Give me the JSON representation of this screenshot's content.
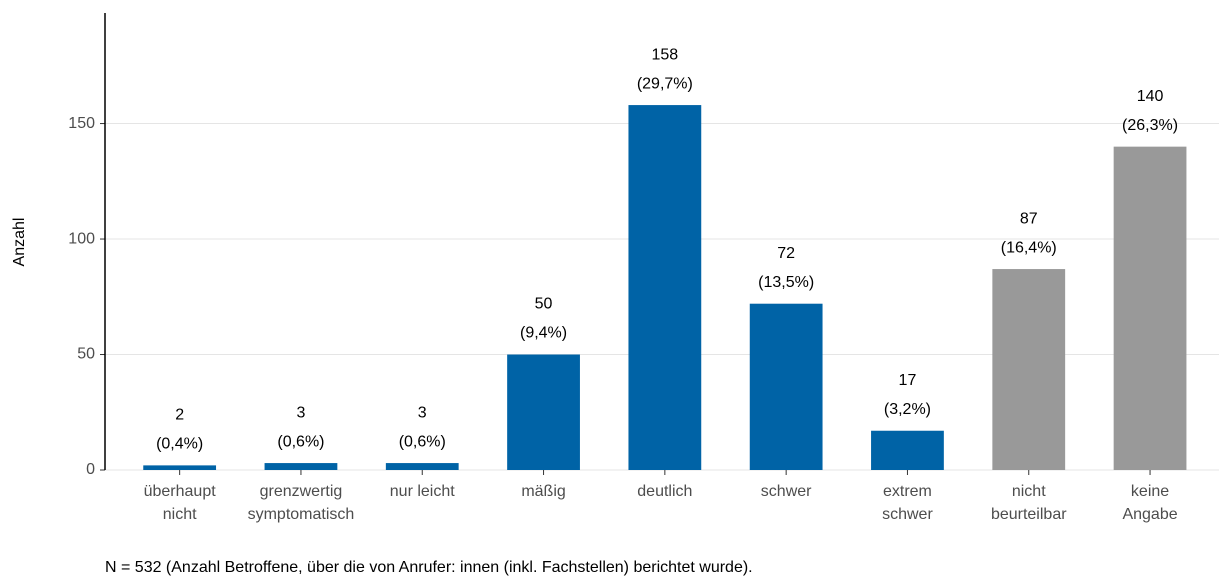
{
  "chart_data": {
    "type": "bar",
    "y_label": "Anzahl",
    "categories": [
      [
        "überhaupt",
        "nicht"
      ],
      [
        "grenzwertig",
        "symptomatisch"
      ],
      [
        "nur leicht"
      ],
      [
        "mäßig"
      ],
      [
        "deutlich"
      ],
      [
        "schwer"
      ],
      [
        "extrem",
        "schwer"
      ],
      [
        "nicht",
        "beurteilbar"
      ],
      [
        "keine",
        "Angabe"
      ]
    ],
    "values": [
      2,
      3,
      3,
      50,
      158,
      72,
      17,
      87,
      140
    ],
    "share_labels": [
      "(0,4%)",
      "(0,6%)",
      "(0,6%)",
      "(9,4%)",
      "(29,7%)",
      "(13,5%)",
      "(3,2%)",
      "(16,4%)",
      "(26,3%)"
    ],
    "colors": [
      "#0063a6",
      "#0063a6",
      "#0063a6",
      "#0063a6",
      "#0063a6",
      "#0063a6",
      "#0063a6",
      "#999999",
      "#999999"
    ],
    "ylim": [
      0,
      197
    ],
    "yticks": [
      0,
      50,
      100,
      150
    ],
    "grid": true,
    "footnote": "N = 532 (Anzahl Betroffene, über die von Anrufer: innen (inkl. Fachstellen) berichtet wurde)."
  }
}
